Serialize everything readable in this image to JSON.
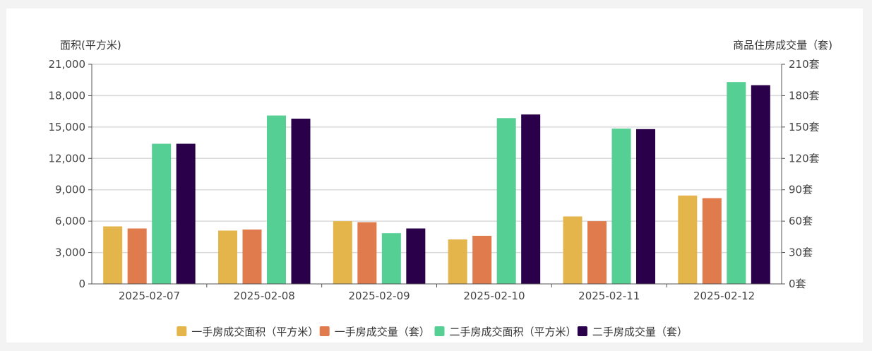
{
  "chart_data": {
    "type": "bar",
    "left_axis_title": "面积(平方米)",
    "right_axis_title": "商品住房成交量（套)",
    "categories": [
      "2025-02-07",
      "2025-02-08",
      "2025-02-09",
      "2025-02-10",
      "2025-02-11",
      "2025-02-12"
    ],
    "left_ylim": [
      0,
      21000
    ],
    "left_ticks": [
      "0",
      "3,000",
      "6,000",
      "9,000",
      "12,000",
      "15,000",
      "18,000",
      "21,000"
    ],
    "right_ylim": [
      0,
      210
    ],
    "right_ticks": [
      "0套",
      "30套",
      "60套",
      "90套",
      "120套",
      "150套",
      "180套",
      "210套"
    ],
    "grid": true,
    "legend_position": "bottom",
    "series": [
      {
        "name": "一手房成交面积（平方米）",
        "axis": "left",
        "color": "#e3b54a",
        "values": [
          5500,
          5100,
          6000,
          4250,
          6450,
          8450
        ]
      },
      {
        "name": "一手房成交量（套）",
        "axis": "right",
        "color": "#e07b4d",
        "values": [
          53,
          52,
          59,
          46,
          60,
          82
        ]
      },
      {
        "name": "二手房成交面积（平方米）",
        "axis": "left",
        "color": "#55cf94",
        "values": [
          13400,
          16100,
          4850,
          15850,
          14850,
          19300
        ]
      },
      {
        "name": "二手房成交量（套）",
        "axis": "right",
        "color": "#2b004a",
        "values": [
          134,
          158,
          53,
          162,
          148,
          190
        ]
      }
    ]
  }
}
